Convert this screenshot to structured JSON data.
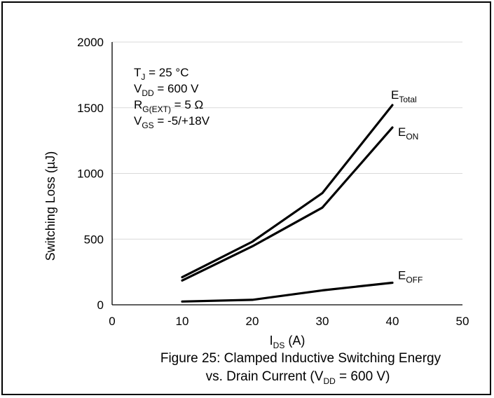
{
  "chart_data": {
    "type": "line",
    "xlabel": {
      "main": "I",
      "sub": "DS",
      "rest": " (A)"
    },
    "ylabel": "Switching Loss (µJ)",
    "xlim": [
      0,
      50
    ],
    "ylim": [
      0,
      2000
    ],
    "xticks": [
      "0",
      "10",
      "20",
      "30",
      "40",
      "50"
    ],
    "yticks": [
      "0",
      "500",
      "1000",
      "1500",
      "2000"
    ],
    "grid": "horizontal",
    "x": [
      10,
      20,
      30,
      40
    ],
    "series": [
      {
        "name": "E_Total",
        "label_main": "E",
        "label_sub": "Total",
        "values": [
          210,
          480,
          850,
          1520
        ]
      },
      {
        "name": "E_ON",
        "label_main": "E",
        "label_sub": "ON",
        "values": [
          185,
          445,
          740,
          1350
        ]
      },
      {
        "name": "E_OFF",
        "label_main": "E",
        "label_sub": "OFF",
        "values": [
          25,
          38,
          110,
          168
        ]
      }
    ],
    "conditions": [
      {
        "main": "T",
        "sub": "J",
        "rest": " = 25 °C"
      },
      {
        "main": "V",
        "sub": "DD",
        "rest": " = 600 V"
      },
      {
        "main": "R",
        "sub": "G(EXT)",
        "rest": " = 5 Ω"
      },
      {
        "main": "V",
        "sub": "GS",
        "rest": " = -5/+18V"
      }
    ],
    "caption": {
      "line1": "Figure 25: Clamped Inductive Switching Energy",
      "line2_main": "vs. Drain Current (V",
      "line2_sub": "DD",
      "line2_rest": " = 600 V)"
    }
  }
}
